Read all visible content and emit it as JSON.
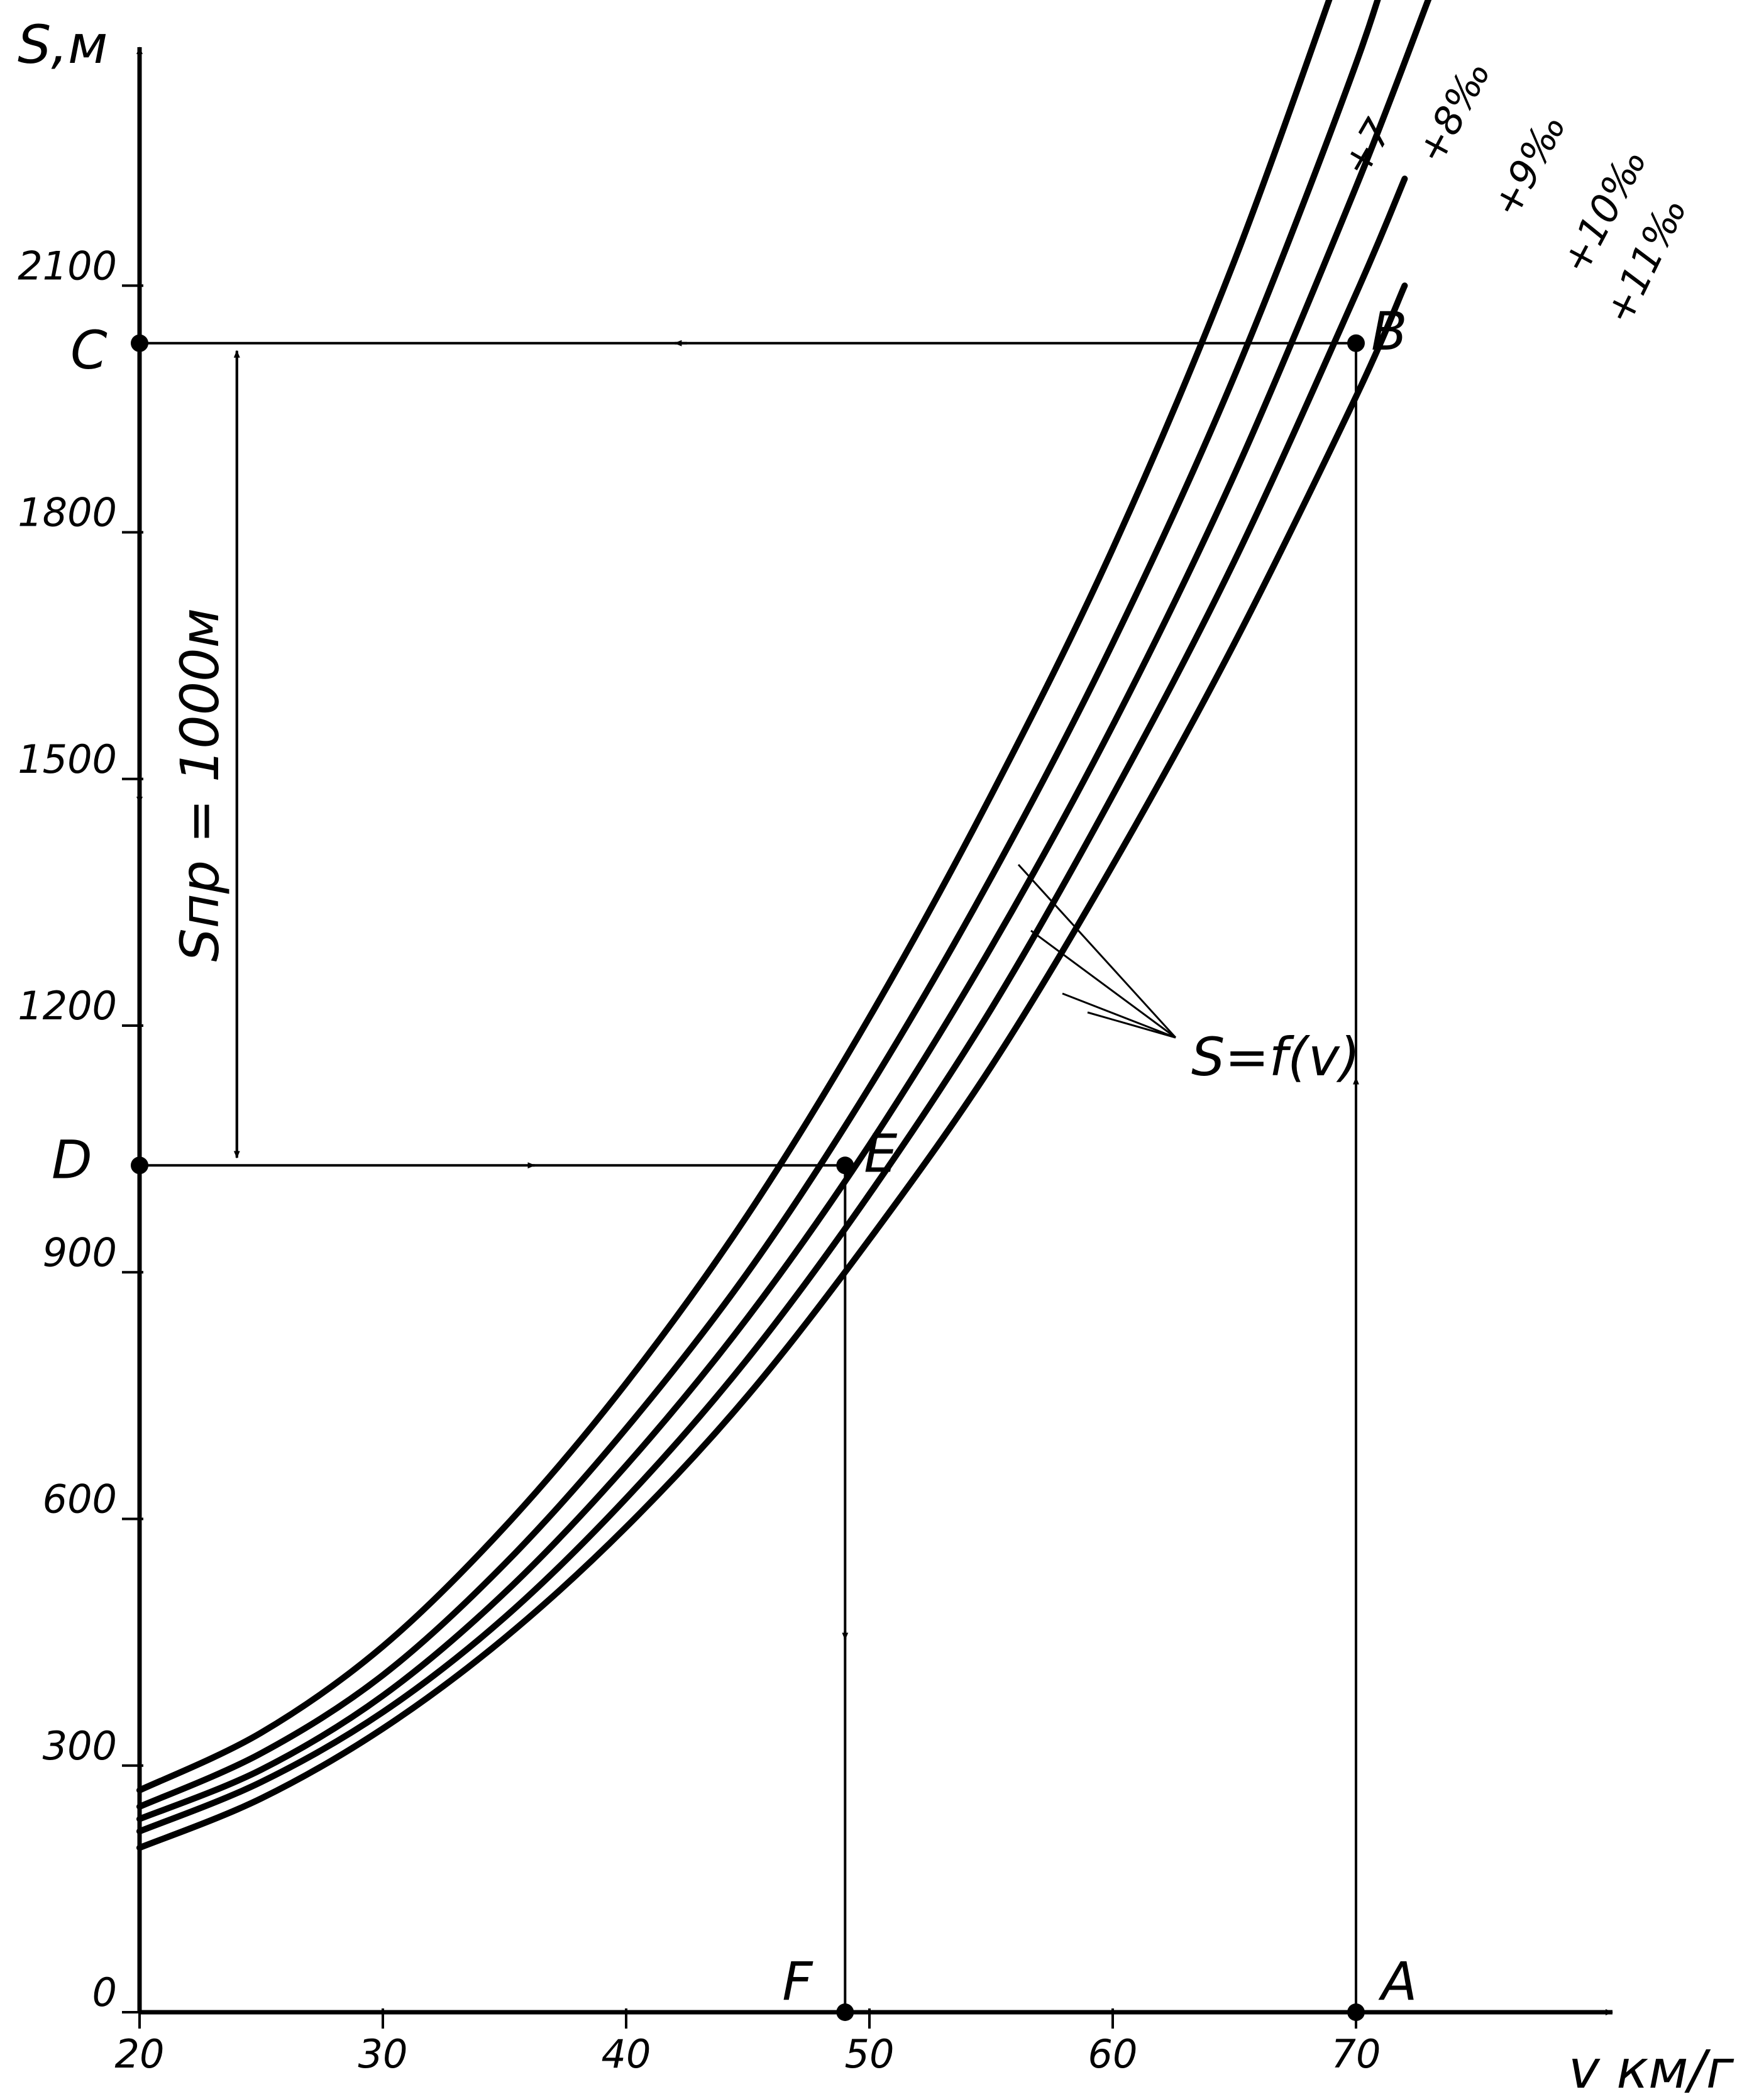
{
  "chart_data": {
    "type": "line",
    "title": "",
    "xlabel": "v км/г",
    "ylabel": "S,м",
    "xlim": [
      20,
      80
    ],
    "ylim": [
      0,
      2400
    ],
    "x_ticks": [
      "20",
      "30",
      "40",
      "50",
      "60",
      "70"
    ],
    "y_ticks": [
      "0",
      "300",
      "600",
      "900",
      "1200",
      "1500",
      "1800",
      "2100"
    ],
    "series": [
      {
        "name": "+7",
        "x": [
          20,
          25,
          30,
          35,
          40,
          45,
          50,
          55,
          60,
          65,
          70
        ],
        "y": [
          270,
          340,
          445,
          590,
          765,
          970,
          1210,
          1480,
          1780,
          2130,
          2540
        ]
      },
      {
        "name": "+8‰",
        "x": [
          20,
          25,
          30,
          35,
          40,
          45,
          50,
          55,
          60,
          65,
          70,
          72
        ],
        "y": [
          250,
          315,
          410,
          545,
          710,
          900,
          1125,
          1380,
          1665,
          1990,
          2370,
          2560
        ]
      },
      {
        "name": "+9‰",
        "x": [
          20,
          25,
          30,
          35,
          40,
          45,
          50,
          55,
          60,
          65,
          70,
          73
        ],
        "y": [
          235,
          295,
          385,
          510,
          665,
          845,
          1055,
          1295,
          1565,
          1870,
          2220,
          2450
        ]
      },
      {
        "name": "+10‰",
        "x": [
          20,
          25,
          30,
          35,
          40,
          45,
          50,
          55,
          60,
          65,
          70,
          72
        ],
        "y": [
          220,
          280,
          365,
          480,
          625,
          795,
          995,
          1220,
          1480,
          1765,
          2090,
          2230
        ]
      },
      {
        "name": "+11‰",
        "x": [
          20,
          25,
          30,
          35,
          40,
          45,
          50,
          55,
          60,
          65,
          70,
          72
        ],
        "y": [
          200,
          260,
          345,
          455,
          590,
          750,
          940,
          1150,
          1395,
          1665,
          1965,
          2100
        ]
      }
    ],
    "construction": {
      "points": [
        {
          "label": "A",
          "x": 70,
          "y": 0
        },
        {
          "label": "B",
          "x": 70,
          "y": 2030
        },
        {
          "label": "C",
          "x": 20,
          "y": 2030
        },
        {
          "label": "D",
          "x": 20,
          "y": 1030
        },
        {
          "label": "E",
          "x": 49,
          "y": 1030
        },
        {
          "label": "F",
          "x": 49,
          "y": 0
        }
      ],
      "path": [
        "A",
        "B",
        "C",
        "D",
        "E",
        "F"
      ],
      "dimension_label": "Sпр = 1000м",
      "dimension_from": 2030,
      "dimension_to": 1030,
      "dimension_x": 24,
      "function_label": "S=f(v)"
    }
  }
}
